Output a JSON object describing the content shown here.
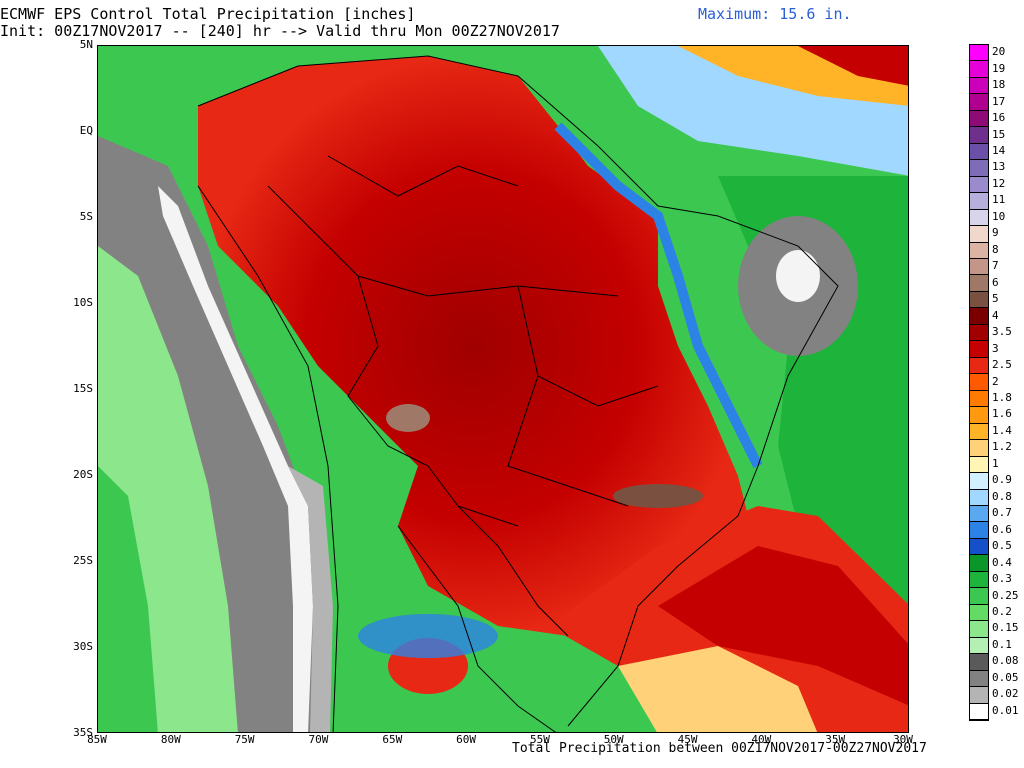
{
  "header": {
    "title_line1": "ECMWF EPS Control Total Precipitation [inches]",
    "title_line2": "Init: 00Z17NOV2017 -- [240] hr --> Valid thru Mon 00Z27NOV2017",
    "maximum": "Maximum: 15.6 in."
  },
  "footer": "Total Precipitation between 00Z17NOV2017-00Z27NOV2017",
  "lat_labels": [
    "5N",
    "EQ",
    "5S",
    "10S",
    "15S",
    "20S",
    "25S",
    "30S",
    "35S"
  ],
  "lon_labels": [
    "85W",
    "80W",
    "75W",
    "70W",
    "65W",
    "60W",
    "55W",
    "50W",
    "45W",
    "40W",
    "35W",
    "30W"
  ],
  "map": {
    "extent": {
      "lon_min": -85,
      "lon_max": -30,
      "lat_min": -35,
      "lat_max": 5
    },
    "max_value_in": 15.6
  },
  "colorbar": [
    {
      "label": "20",
      "color": "#ff00ff"
    },
    {
      "label": "19",
      "color": "#e600d8"
    },
    {
      "label": "18",
      "color": "#cc00b8"
    },
    {
      "label": "17",
      "color": "#b0008f"
    },
    {
      "label": "16",
      "color": "#8e0a76"
    },
    {
      "label": "15",
      "color": "#6f2f8c"
    },
    {
      "label": "14",
      "color": "#6a50a8"
    },
    {
      "label": "13",
      "color": "#7e6cb8"
    },
    {
      "label": "12",
      "color": "#9a8ccc"
    },
    {
      "label": "11",
      "color": "#b8b0dc"
    },
    {
      "label": "10",
      "color": "#d8d4ec"
    },
    {
      "label": "9",
      "color": "#f0d8cc"
    },
    {
      "label": "8",
      "color": "#dcb4a4"
    },
    {
      "label": "7",
      "color": "#c4968a"
    },
    {
      "label": "6",
      "color": "#a07868"
    },
    {
      "label": "5",
      "color": "#7a5040"
    },
    {
      "label": "4",
      "color": "#7a0000"
    },
    {
      "label": "3.5",
      "color": "#a00000"
    },
    {
      "label": "3",
      "color": "#c40000"
    },
    {
      "label": "2.5",
      "color": "#e62814"
    },
    {
      "label": "2",
      "color": "#ff5a00"
    },
    {
      "label": "1.8",
      "color": "#ff7a00"
    },
    {
      "label": "1.6",
      "color": "#ff9a10"
    },
    {
      "label": "1.4",
      "color": "#ffb428"
    },
    {
      "label": "1.2",
      "color": "#ffd27a"
    },
    {
      "label": "1",
      "color": "#fff5b4"
    },
    {
      "label": "0.9",
      "color": "#d2f0ff"
    },
    {
      "label": "0.8",
      "color": "#a0d8ff"
    },
    {
      "label": "0.7",
      "color": "#5aa8f0"
    },
    {
      "label": "0.6",
      "color": "#2d82e6"
    },
    {
      "label": "0.5",
      "color": "#1450c8"
    },
    {
      "label": "0.4",
      "color": "#0a9628"
    },
    {
      "label": "0.3",
      "color": "#1eb43c"
    },
    {
      "label": "0.25",
      "color": "#3cc850"
    },
    {
      "label": "0.2",
      "color": "#64dc64"
    },
    {
      "label": "0.15",
      "color": "#8ce68c"
    },
    {
      "label": "0.1",
      "color": "#b4f0b4"
    },
    {
      "label": "0.08",
      "color": "#5a5a5a"
    },
    {
      "label": "0.05",
      "color": "#828282"
    },
    {
      "label": "0.02",
      "color": "#b4b4b4"
    },
    {
      "label": "0.01",
      "color": "#ffffff"
    }
  ]
}
